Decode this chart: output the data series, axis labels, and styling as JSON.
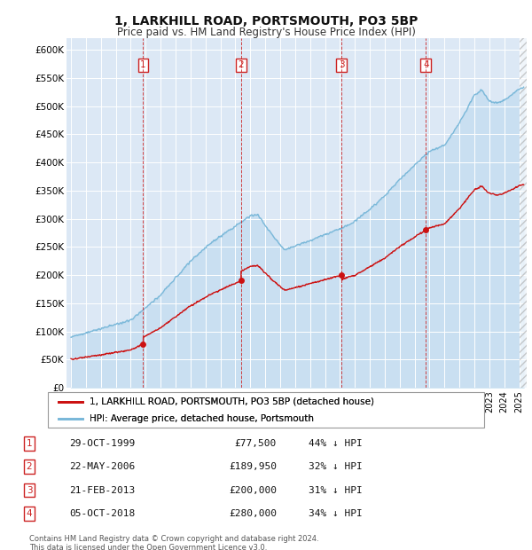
{
  "title": "1, LARKHILL ROAD, PORTSMOUTH, PO3 5BP",
  "subtitle": "Price paid vs. HM Land Registry's House Price Index (HPI)",
  "plot_bg_color": "#dce8f5",
  "ylabel_ticks": [
    "£0",
    "£50K",
    "£100K",
    "£150K",
    "£200K",
    "£250K",
    "£300K",
    "£350K",
    "£400K",
    "£450K",
    "£500K",
    "£550K",
    "£600K"
  ],
  "ylim": [
    0,
    620000
  ],
  "xlim_start": 1994.7,
  "xlim_end": 2025.5,
  "transactions": [
    {
      "num": 1,
      "year": 1999.83,
      "price": 77500
    },
    {
      "num": 2,
      "year": 2006.38,
      "price": 189950
    },
    {
      "num": 3,
      "year": 2013.12,
      "price": 200000
    },
    {
      "num": 4,
      "year": 2018.75,
      "price": 280000
    }
  ],
  "hpi_color": "#7ab8d9",
  "hpi_fill_color": "#b8d8ee",
  "property_color": "#cc1111",
  "vline_color": "#cc2222",
  "legend_label_property": "1, LARKHILL ROAD, PORTSMOUTH, PO3 5BP (detached house)",
  "legend_label_hpi": "HPI: Average price, detached house, Portsmouth",
  "footer1": "Contains HM Land Registry data © Crown copyright and database right 2024.",
  "footer2": "This data is licensed under the Open Government Licence v3.0.",
  "table_rows": [
    [
      "1",
      "29-OCT-1999",
      "£77,500",
      "44% ↓ HPI"
    ],
    [
      "2",
      "22-MAY-2006",
      "£189,950",
      "32% ↓ HPI"
    ],
    [
      "3",
      "21-FEB-2013",
      "£200,000",
      "31% ↓ HPI"
    ],
    [
      "4",
      "05-OCT-2018",
      "£280,000",
      "34% ↓ HPI"
    ]
  ]
}
